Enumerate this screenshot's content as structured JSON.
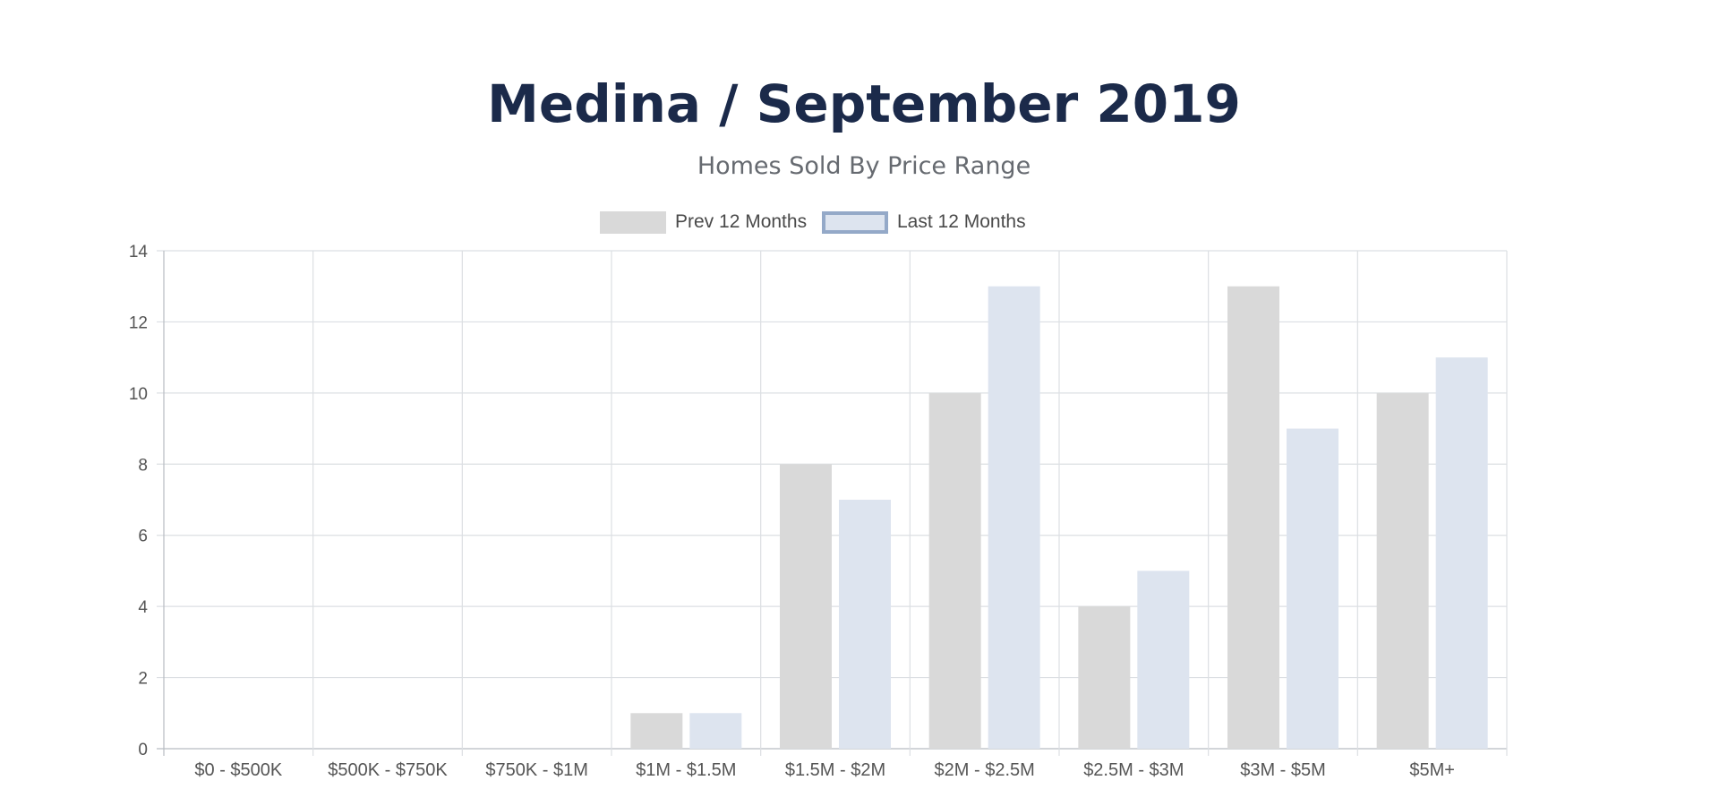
{
  "chart_data": {
    "type": "bar",
    "title": "Medina / September 2019",
    "subtitle": "Homes Sold By Price Range",
    "categories": [
      "$0 - $500K",
      "$500K - $750K",
      "$750K - $1M",
      "$1M - $1.5M",
      "$1.5M - $2M",
      "$2M - $2.5M",
      "$2.5M - $3M",
      "$3M - $5M",
      "$5M+"
    ],
    "series": [
      {
        "name": "Prev 12 Months",
        "values": [
          0,
          0,
          0,
          1,
          8,
          10,
          4,
          13,
          10
        ],
        "color": "#d9d9d9"
      },
      {
        "name": "Last 12 Months",
        "values": [
          0,
          0,
          0,
          1,
          7,
          13,
          5,
          9,
          11
        ],
        "color": "#dde4ef",
        "border_color": "#94a9c8"
      }
    ],
    "ylim": [
      0,
      14
    ],
    "yticks": [
      0,
      2,
      4,
      6,
      8,
      10,
      12,
      14
    ],
    "xlabel": "",
    "ylabel": "",
    "grid": true,
    "legend_position": "top-center"
  }
}
